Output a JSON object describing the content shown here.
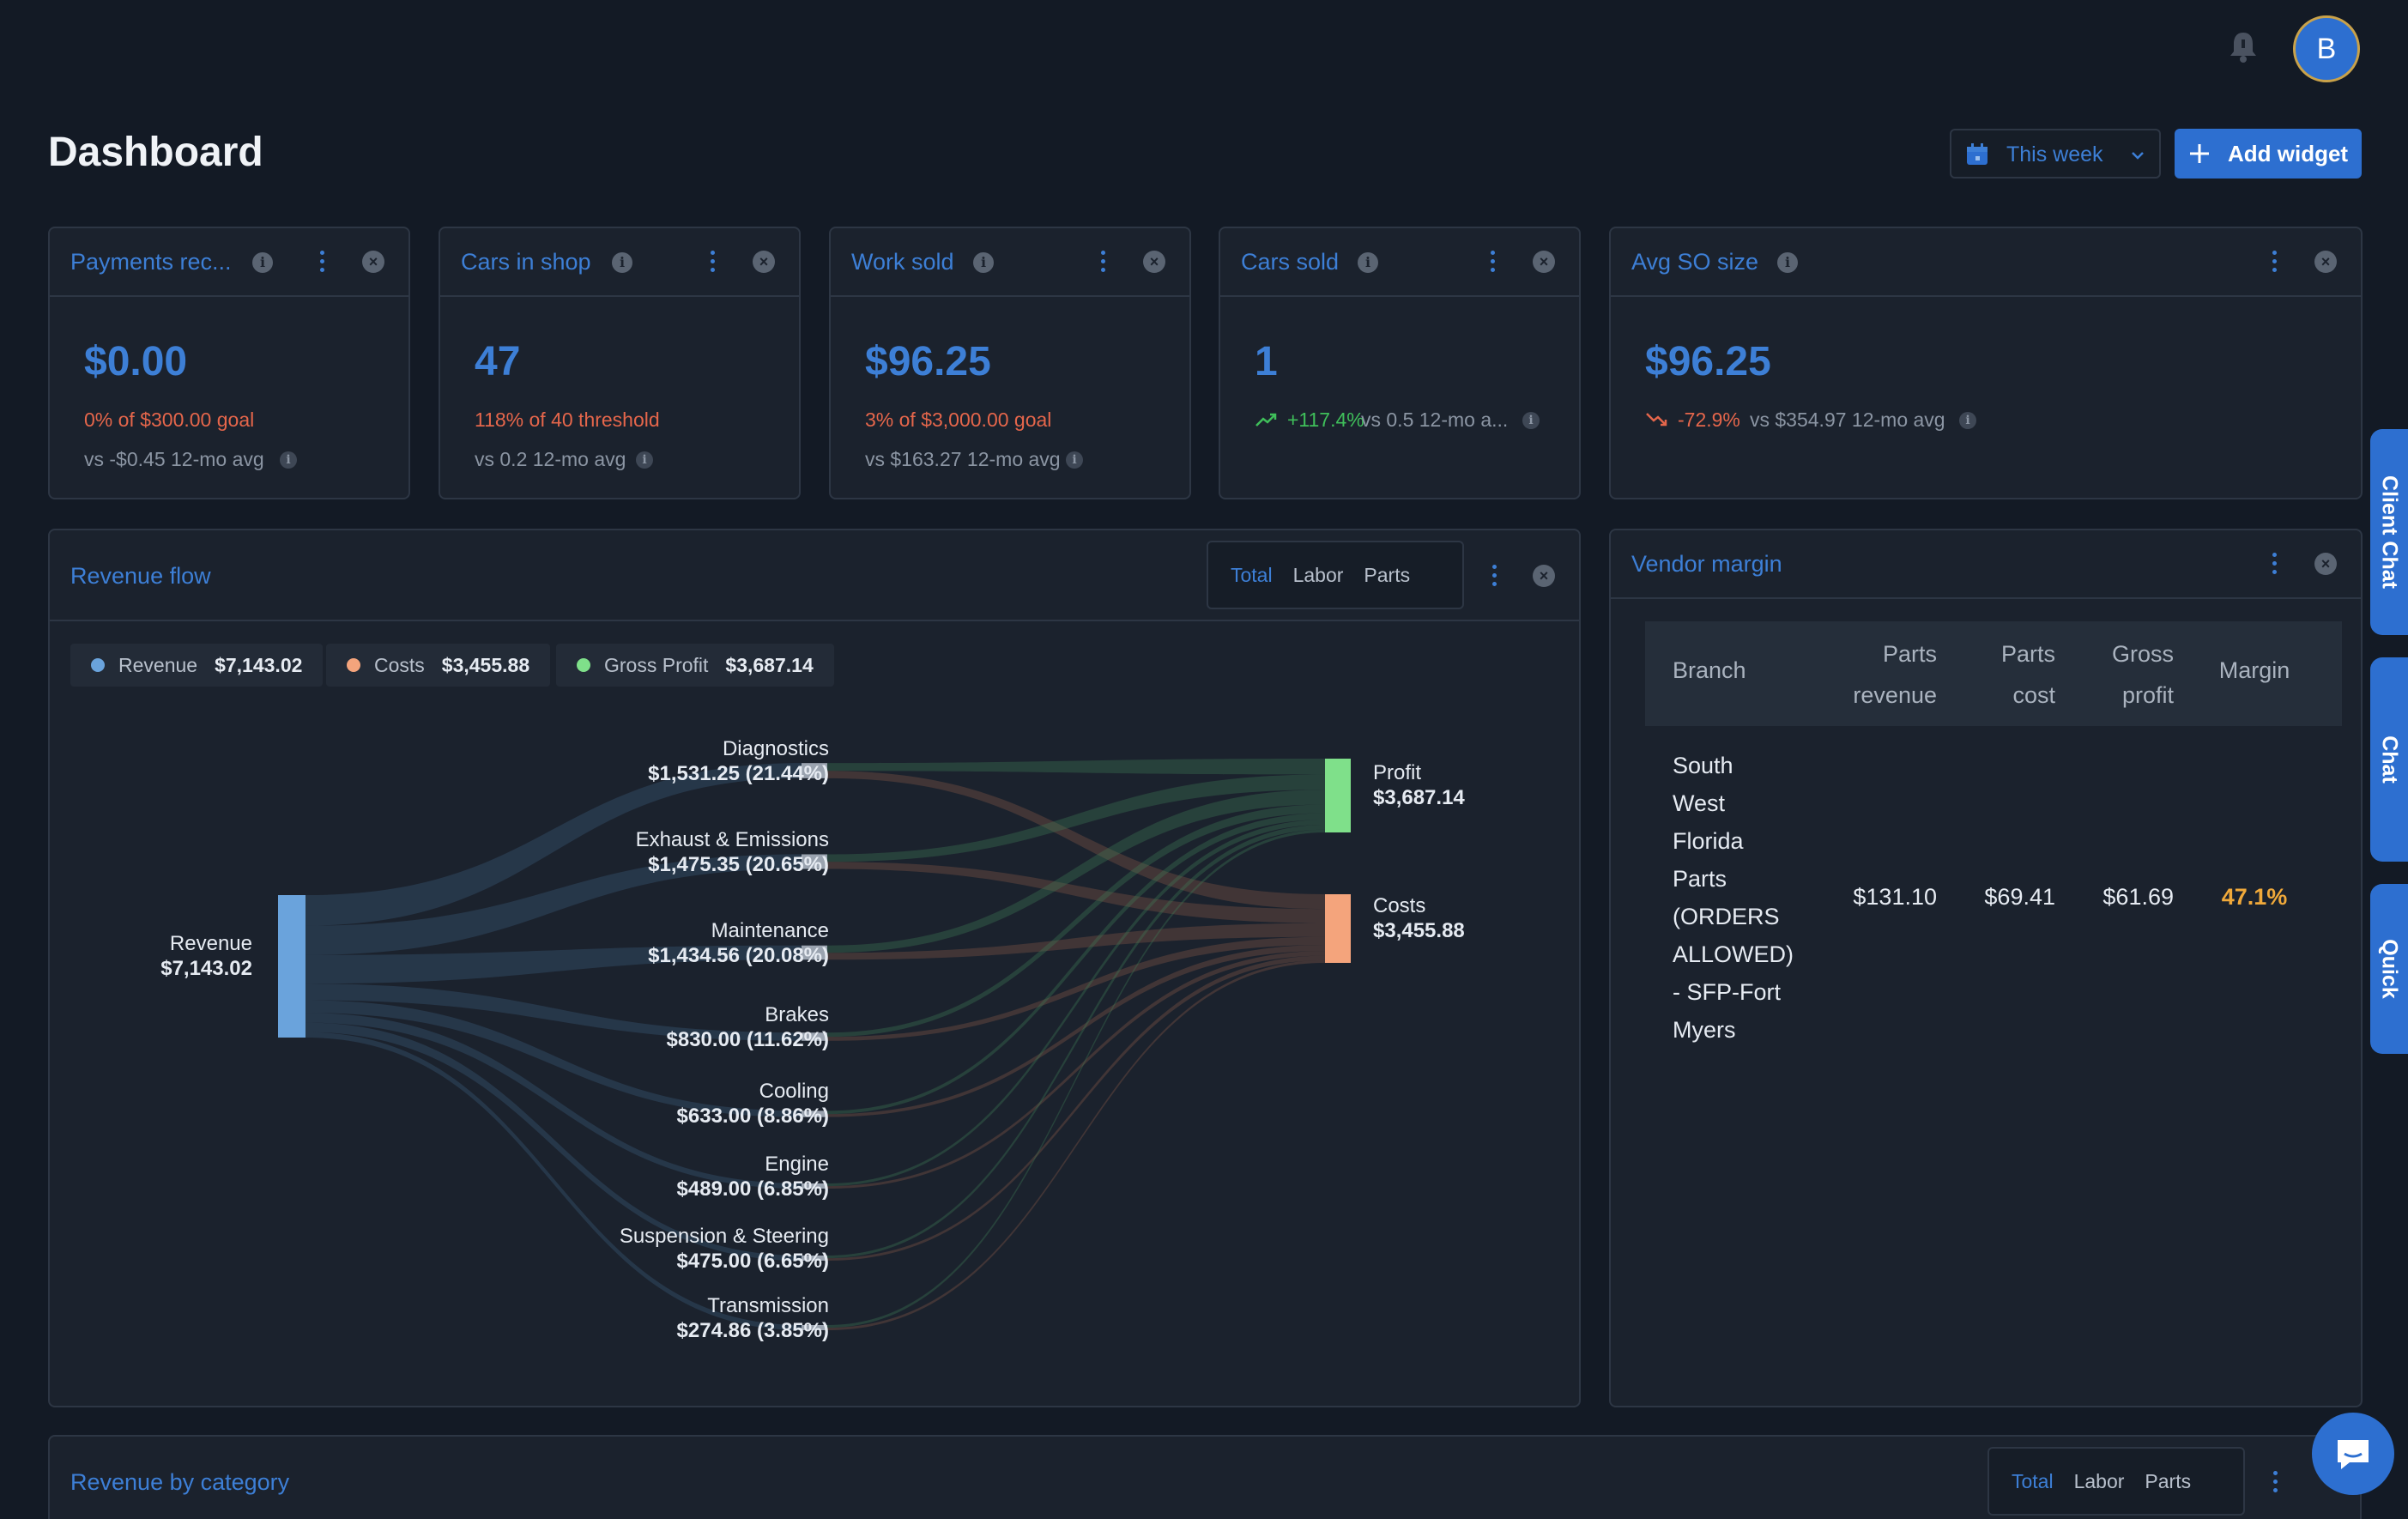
{
  "header": {
    "title": "Dashboard",
    "avatar_initial": "B",
    "date_range": "This week",
    "add_widget": "Add widget"
  },
  "kpis": [
    {
      "title": "Payments rec...",
      "value": "$0.00",
      "line1": "0% of $300.00 goal",
      "line2": "vs -$0.45  12-mo avg"
    },
    {
      "title": "Cars in shop",
      "value": "47",
      "line1": "118% of 40 threshold",
      "line2": "vs 0.2  12-mo avg"
    },
    {
      "title": "Work sold",
      "value": "$96.25",
      "line1": "3% of $3,000.00 goal",
      "line2": "vs $163.27  12-mo avg"
    },
    {
      "title": "Cars sold",
      "value": "1",
      "trend": "+117.4%",
      "trend_rest": "vs 0.5  12-mo a..."
    },
    {
      "title": "Avg SO size",
      "value": "$96.25",
      "trend": "-72.9%",
      "trend_rest": "vs $354.97  12-mo avg"
    }
  ],
  "revenue_flow": {
    "title": "Revenue flow",
    "tabs": [
      "Total",
      "Labor",
      "Parts"
    ],
    "legend": [
      {
        "label": "Revenue",
        "value": "$7,143.02",
        "color": "#6aa3dc"
      },
      {
        "label": "Costs",
        "value": "$3,455.88",
        "color": "#f4a47c"
      },
      {
        "label": "Gross Profit",
        "value": "$3,687.14",
        "color": "#7fe08a"
      }
    ],
    "source": {
      "name": "Revenue",
      "value": "$7,143.02"
    },
    "categories": [
      {
        "name": "Diagnostics",
        "value": "$1,531.25 (21.44%)"
      },
      {
        "name": "Exhaust & Emissions",
        "value": "$1,475.35 (20.65%)"
      },
      {
        "name": "Maintenance",
        "value": "$1,434.56 (20.08%)"
      },
      {
        "name": "Brakes",
        "value": "$830.00 (11.62%)"
      },
      {
        "name": "Cooling",
        "value": "$633.00 (8.86%)"
      },
      {
        "name": "Engine",
        "value": "$489.00 (6.85%)"
      },
      {
        "name": "Suspension & Steering",
        "value": "$475.00 (6.65%)"
      },
      {
        "name": "Transmission",
        "value": "$274.86 (3.85%)"
      }
    ],
    "targets": [
      {
        "name": "Profit",
        "value": "$3,687.14"
      },
      {
        "name": "Costs",
        "value": "$3,455.88"
      }
    ]
  },
  "vendor_margin": {
    "title": "Vendor margin",
    "columns": [
      [
        "Branch"
      ],
      [
        "Parts",
        "revenue"
      ],
      [
        "Parts",
        "cost"
      ],
      [
        "Gross",
        "profit"
      ],
      [
        "Margin"
      ]
    ],
    "row_branch_lines": [
      "South",
      "West",
      "Florida",
      "Parts",
      "(ORDERS",
      "ALLOWED)",
      "- SFP-Fort",
      "Myers"
    ],
    "row": {
      "parts_revenue": "$131.10",
      "parts_cost": "$69.41",
      "gross_profit": "$61.69",
      "margin": "47.1%"
    }
  },
  "revenue_by_category": {
    "title": "Revenue by category",
    "tabs": [
      "Total",
      "Labor",
      "Parts"
    ]
  },
  "side_tabs": [
    "Client Chat",
    "Chat",
    "Quick"
  ],
  "colors": {
    "accent": "#3d7fd6",
    "background": "#131a25",
    "panel": "#1b222d",
    "warning": "#e5664b",
    "positive": "#3fbf5a",
    "margin": "#f0a93a"
  }
}
